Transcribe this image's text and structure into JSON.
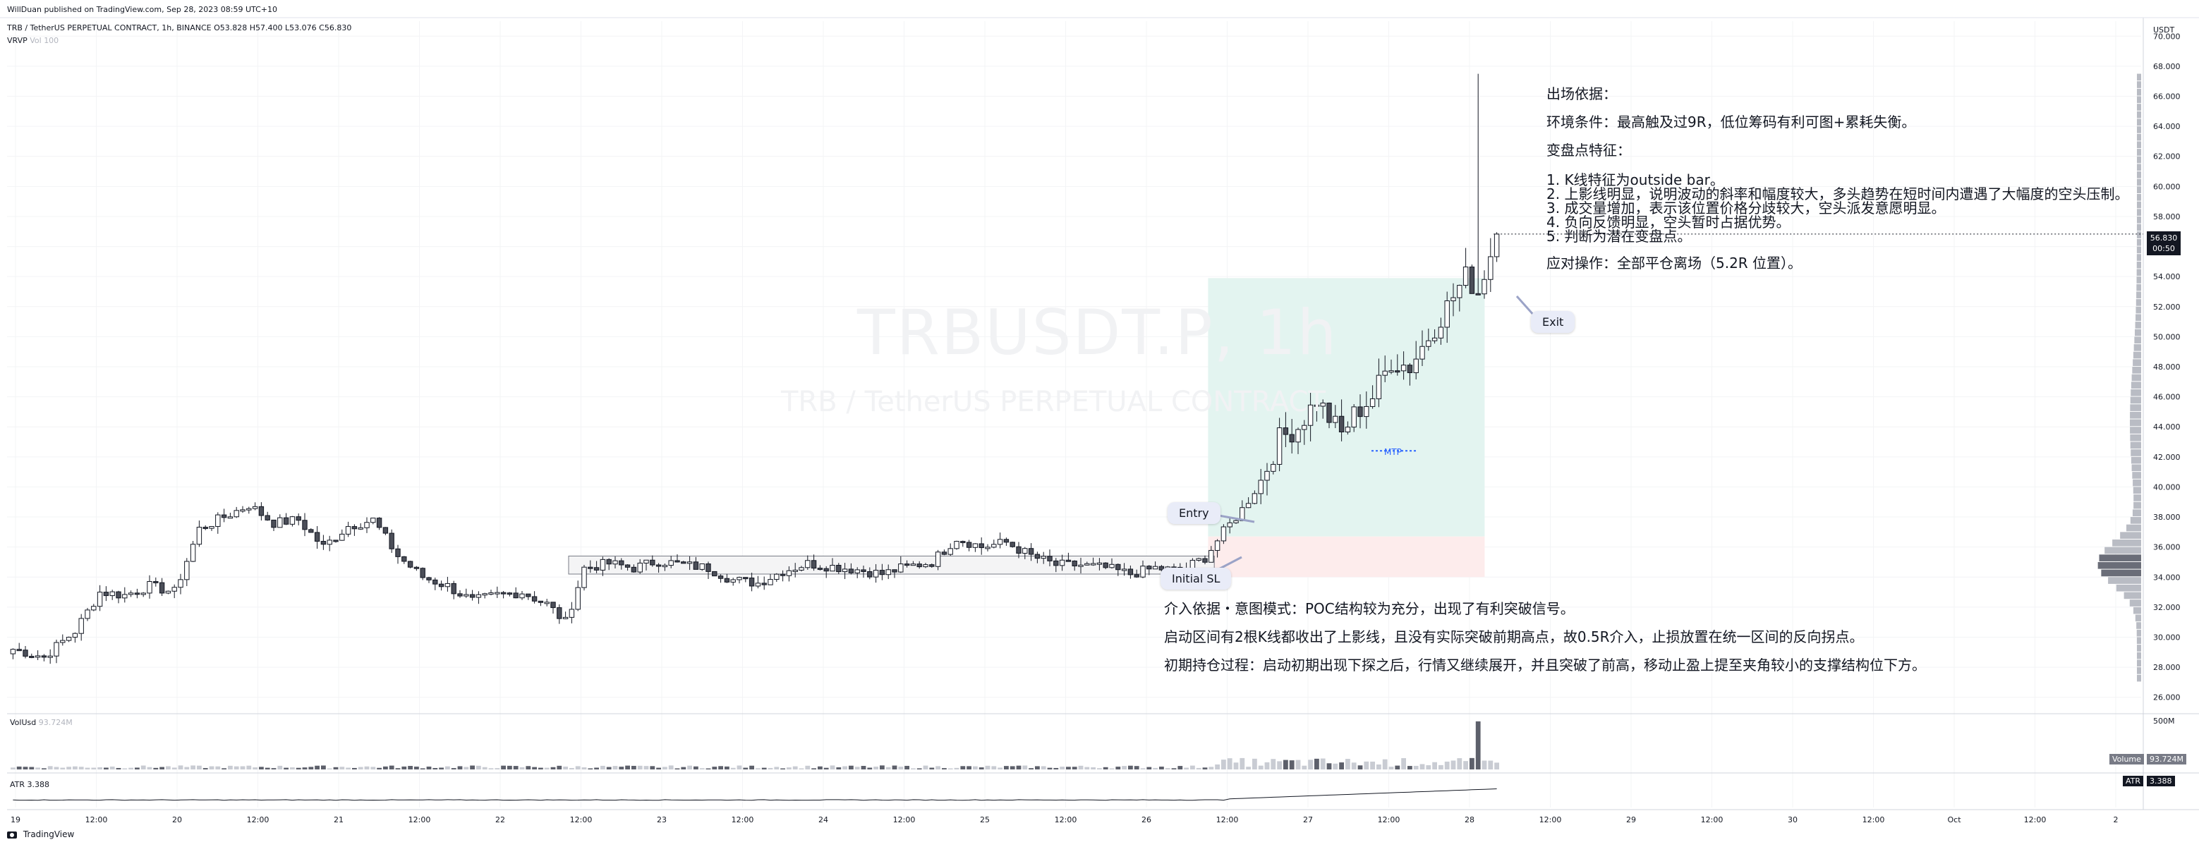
{
  "publish_line": "WillDuan published on TradingView.com, Sep 28, 2023 08:59 UTC+10",
  "symbol_line": "TRB / TetherUS PERPETUAL CONTRACT, 1h, BINANCE  O53.828  H57.400  L53.076  C56.830",
  "vrvp_label": "VRVP",
  "vrvp_values": "Vol  100",
  "currency_label": "USDT",
  "watermark_big": "TRBUSDT.P, 1h",
  "watermark_small": "TRB / TetherUS PERPETUAL CONTRACT",
  "last_price": "56.830",
  "countdown": "00:50",
  "annotations": {
    "exit_title": "出场依据：",
    "exit_env": "环境条件：最高触及过9R，低位筹码有利可图+累耗失衡。",
    "exit_turn": "变盘点特征：",
    "exit_points": [
      "1. K线特征为outside bar。",
      "2. 上影线明显，说明波动的斜率和幅度较大，多头趋势在短时间内遭遇了大幅度的空头压制。",
      "3. 成交量增加，表示该位置价格分歧较大，空头派发意愿明显。",
      "4. 负向反馈明显，空头暂时占据优势。",
      "5. 判断为潜在变盘点。"
    ],
    "exit_action": "应对操作：全部平仓离场（5.2R 位置）。",
    "entry_reason": "介入依据・意图模式：POC结构较为充分，出现了有利突破信号。",
    "entry_detail": "启动区间有2根K线都收出了上影线，且没有实际突破前期高点，故0.5R介入，止损放置在统一区间的反向拐点。",
    "holding": "初期持仓过程：启动初期出现下探之后，行情又继续展开，并且突破了前高，移动止盈上提至夹角较小的支撑结构位下方。"
  },
  "bubbles": {
    "entry": "Entry",
    "initial_sl": "Initial SL",
    "exit": "Exit"
  },
  "mtp_label": "MTP",
  "volume_pane": {
    "label": "VolUsd",
    "value": "93.724M",
    "axis_top": "500M",
    "tag_label": "Volume",
    "tag_value": "93.724M"
  },
  "atr_pane": {
    "label": "ATR",
    "value": "3.388",
    "tag_label": "ATR",
    "tag_value": "3.388"
  },
  "footer_brand": "TradingView",
  "colors": {
    "up": "#ffffff",
    "down": "#4b4e58",
    "outline": "#131722",
    "profit_zone": "#e3f4f0",
    "loss_zone": "#fdecec",
    "accent": "#2962ff"
  },
  "chart_data": {
    "type": "candlestick",
    "title": "",
    "ylabel": "USDT",
    "ylim": [
      25,
      71
    ],
    "y_ticks": [
      26,
      28,
      30,
      32,
      34,
      36,
      38,
      40,
      42,
      44,
      46,
      48,
      50,
      52,
      54,
      56,
      58,
      60,
      62,
      64,
      66,
      68,
      70
    ],
    "x_ticks": [
      "19",
      "12:00",
      "20",
      "12:00",
      "21",
      "12:00",
      "22",
      "12:00",
      "23",
      "12:00",
      "24",
      "12:00",
      "25",
      "12:00",
      "26",
      "12:00",
      "27",
      "12:00",
      "28",
      "12:00",
      "29",
      "12:00",
      "30",
      "12:00",
      "Oct",
      "12:00",
      "2"
    ],
    "close_path": [
      [
        0,
        29.2
      ],
      [
        5,
        28.7
      ],
      [
        10,
        30.4
      ],
      [
        14,
        33.0
      ],
      [
        18,
        32.8
      ],
      [
        22,
        33.4
      ],
      [
        26,
        33.0
      ],
      [
        30,
        37.2
      ],
      [
        34,
        38.0
      ],
      [
        38,
        38.8
      ],
      [
        42,
        37.6
      ],
      [
        46,
        37.8
      ],
      [
        50,
        36.0
      ],
      [
        54,
        37.4
      ],
      [
        58,
        37.8
      ],
      [
        62,
        35.4
      ],
      [
        66,
        34.0
      ],
      [
        70,
        33.4
      ],
      [
        74,
        32.4
      ],
      [
        78,
        32.8
      ],
      [
        82,
        33.0
      ],
      [
        86,
        32.2
      ],
      [
        89,
        31.0
      ],
      [
        92,
        34.6
      ],
      [
        96,
        34.9
      ],
      [
        100,
        34.6
      ],
      [
        104,
        35.1
      ],
      [
        108,
        34.8
      ],
      [
        112,
        34.6
      ],
      [
        116,
        33.8
      ],
      [
        120,
        33.6
      ],
      [
        124,
        34.4
      ],
      [
        128,
        34.9
      ],
      [
        132,
        34.7
      ],
      [
        136,
        34.5
      ],
      [
        140,
        34.2
      ],
      [
        144,
        34.7
      ],
      [
        148,
        35.0
      ],
      [
        152,
        36.6
      ],
      [
        156,
        36.0
      ],
      [
        160,
        36.3
      ],
      [
        164,
        35.4
      ],
      [
        168,
        34.8
      ],
      [
        172,
        34.8
      ],
      [
        176,
        34.6
      ],
      [
        180,
        34.2
      ],
      [
        184,
        34.6
      ],
      [
        188,
        34.4
      ],
      [
        192,
        35.3
      ],
      [
        195,
        37.0
      ],
      [
        198,
        38.5
      ],
      [
        201,
        40.4
      ],
      [
        204,
        43.2
      ],
      [
        207,
        44.0
      ],
      [
        210,
        45.8
      ],
      [
        212,
        44.6
      ],
      [
        214,
        43.5
      ],
      [
        216,
        44.8
      ],
      [
        219,
        46.0
      ],
      [
        222,
        48.4
      ],
      [
        225,
        48.0
      ],
      [
        228,
        50.0
      ],
      [
        231,
        52.0
      ],
      [
        234,
        54.0
      ],
      [
        236,
        53.0
      ],
      [
        238,
        55.5
      ],
      [
        239,
        56.83
      ]
    ],
    "bar_count": 240,
    "position": {
      "entry": 36.7,
      "stop": 34.0,
      "target": 53.9,
      "start_bar": 193,
      "end_bar": 233
    },
    "consolidation_box": {
      "top": 35.4,
      "bottom": 34.2,
      "start_bar": 90,
      "end_bar": 194
    },
    "mtp_level": 42.4,
    "exit_bar_high": 67.5,
    "volume_max_usd": 500,
    "volume_spike_usd": 480,
    "atr_last": 3.388
  }
}
